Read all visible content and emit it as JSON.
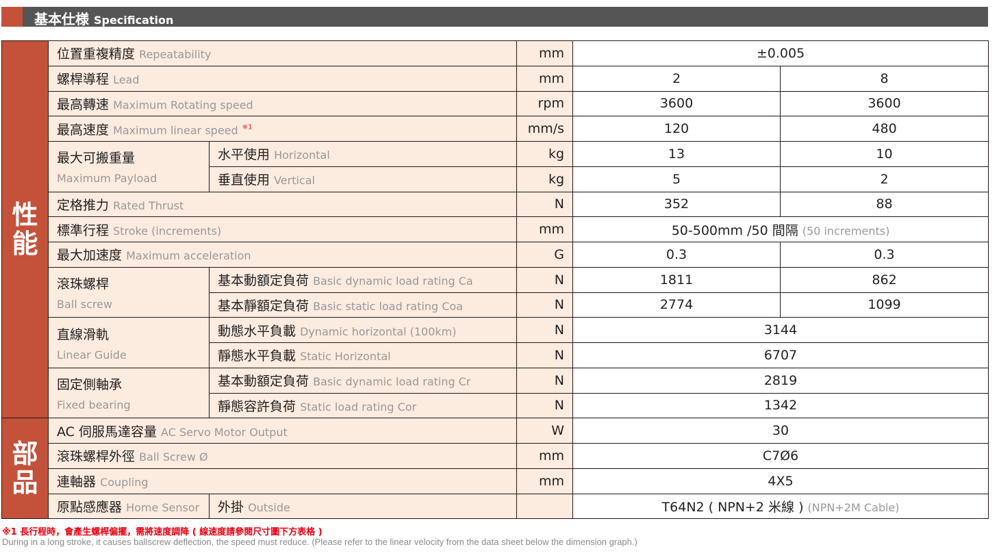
{
  "header": {
    "title_zh": "基本仕様",
    "title_en": "Specification"
  },
  "groups": {
    "performance": "性能",
    "parts": "部品"
  },
  "rows": {
    "repeatability": {
      "zh": "位置重複精度",
      "en": "Repeatability",
      "unit": "mm",
      "value": "±0.005"
    },
    "lead": {
      "zh": "螺桿導程",
      "en": "Lead",
      "unit": "mm",
      "v1": "2",
      "v2": "8"
    },
    "rot_speed": {
      "zh": "最高轉速",
      "en": "Maximum Rotating speed",
      "unit": "rpm",
      "v1": "3600",
      "v2": "3600"
    },
    "lin_speed": {
      "zh": "最高速度",
      "en": "Maximum linear speed",
      "note": "※1",
      "unit": "mm/s",
      "v1": "120",
      "v2": "480"
    },
    "payload": {
      "zh": "最大可搬重量",
      "en": "Maximum Payload",
      "horizontal": {
        "zh": "水平使用",
        "en": "Horizontal",
        "unit": "kg",
        "v1": "13",
        "v2": "10"
      },
      "vertical": {
        "zh": "垂直使用",
        "en": "Vertical",
        "unit": "kg",
        "v1": "5",
        "v2": "2"
      }
    },
    "thrust": {
      "zh": "定格推力",
      "en": "Rated Thrust",
      "unit": "N",
      "v1": "352",
      "v2": "88"
    },
    "stroke": {
      "zh": "標準行程",
      "en": "Stroke (increments)",
      "unit": "mm",
      "value": "50-500mm /50 間隔",
      "value_en": "(50 increments)"
    },
    "accel": {
      "zh": "最大加速度",
      "en": "Maximum acceleration",
      "unit": "G",
      "v1": "0.3",
      "v2": "0.3"
    },
    "ballscrew": {
      "zh": "滾珠螺桿",
      "en": "Ball screw",
      "dynamic": {
        "zh": "基本動額定負荷",
        "en": "Basic dynamic load rating Ca",
        "unit": "N",
        "v1": "1811",
        "v2": "862"
      },
      "static": {
        "zh": "基本靜額定負荷",
        "en": "Basic static load rating Coa",
        "unit": "N",
        "v1": "2774",
        "v2": "1099"
      }
    },
    "guide": {
      "zh": "直線滑軌",
      "en": "Linear Guide",
      "dynamic": {
        "zh": "動態水平負載",
        "en": "Dynamic horizontal (100km)",
        "unit": "N",
        "value": "3144"
      },
      "static": {
        "zh": "靜態水平負載",
        "en": "Static Horizontal",
        "unit": "N",
        "value": "6707"
      }
    },
    "bearing": {
      "zh": "固定側軸承",
      "en": "Fixed bearing",
      "dynamic": {
        "zh": "基本動額定負荷",
        "en": "Basic dynamic load rating Cr",
        "unit": "N",
        "value": "2819"
      },
      "static": {
        "zh": "靜態容許負荷",
        "en": "Static load rating Cor",
        "unit": "N",
        "value": "1342"
      }
    },
    "motor": {
      "zh": "AC 伺服馬達容量",
      "en": "AC Servo Motor Output",
      "unit": "W",
      "value": "30"
    },
    "screw_dia": {
      "zh": "滾珠螺桿外徑",
      "en": "Ball Screw Ø",
      "unit": "mm",
      "value": "C7Ø6"
    },
    "coupling": {
      "zh": "連軸器",
      "en": "Coupling",
      "unit": "mm",
      "value": "4X5"
    },
    "sensor": {
      "zh": "原點感應器",
      "en": "Home Sensor",
      "sub_zh": "外掛",
      "sub_en": "Outside",
      "value": "T64N2 ( NPN+2 米線 )",
      "value_en": "(NPN+2M Cable)"
    }
  },
  "notes": {
    "zh": "※1 長行程時，會產生螺桿偏擺，需將速度調降 ( 線速度請參閱尺寸圖下方表格 )",
    "en": "During in a long stroke, it causes ballscrew deflection, the speed must reduce. (Please refer to the linear velocity from the data sheet below the dimension graph.)"
  },
  "colors": {
    "accent": "#c4513a",
    "header": "#555456",
    "label_bg": "#fcebdf",
    "note": "#e60012"
  }
}
